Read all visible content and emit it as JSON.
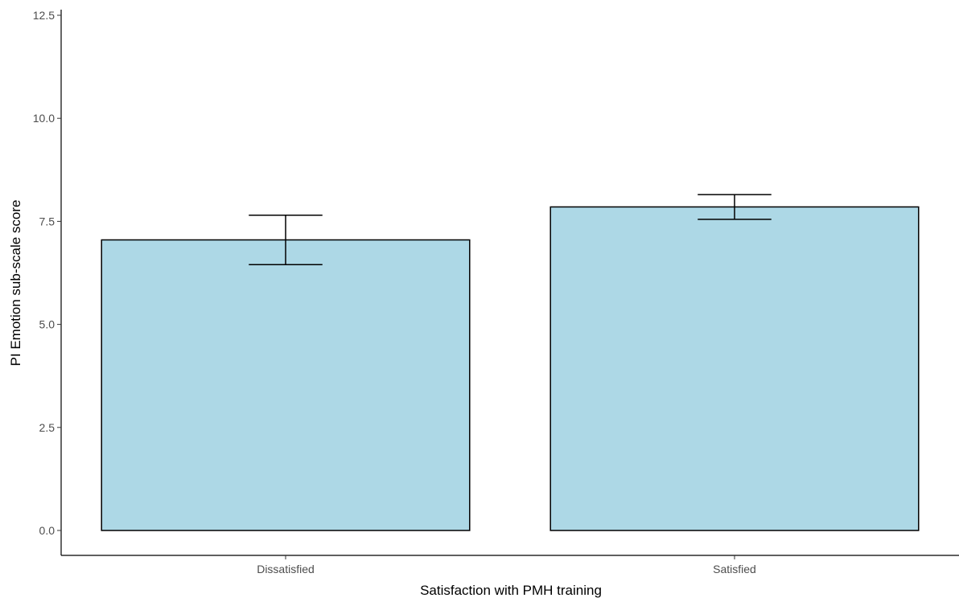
{
  "chart_data": {
    "type": "bar",
    "categories": [
      "Dissatisfied",
      "Satisfied"
    ],
    "values": [
      7.05,
      7.85
    ],
    "error_bars": [
      {
        "lower": 6.45,
        "upper": 7.65
      },
      {
        "lower": 7.55,
        "upper": 8.15
      }
    ],
    "xlabel": "Satisfaction with PMH training",
    "ylabel": "PI Emotion sub-scale score",
    "ylim": [
      -0.6,
      12.55
    ],
    "yticks": [
      0.0,
      2.5,
      5.0,
      7.5,
      10.0,
      12.5
    ],
    "ytick_labels": [
      "0.0",
      "2.5",
      "5.0",
      "7.5",
      "10.0",
      "12.5"
    ],
    "bar_fill": "#add8e6",
    "bar_stroke": "#000000",
    "grid": false,
    "legend": "none"
  }
}
